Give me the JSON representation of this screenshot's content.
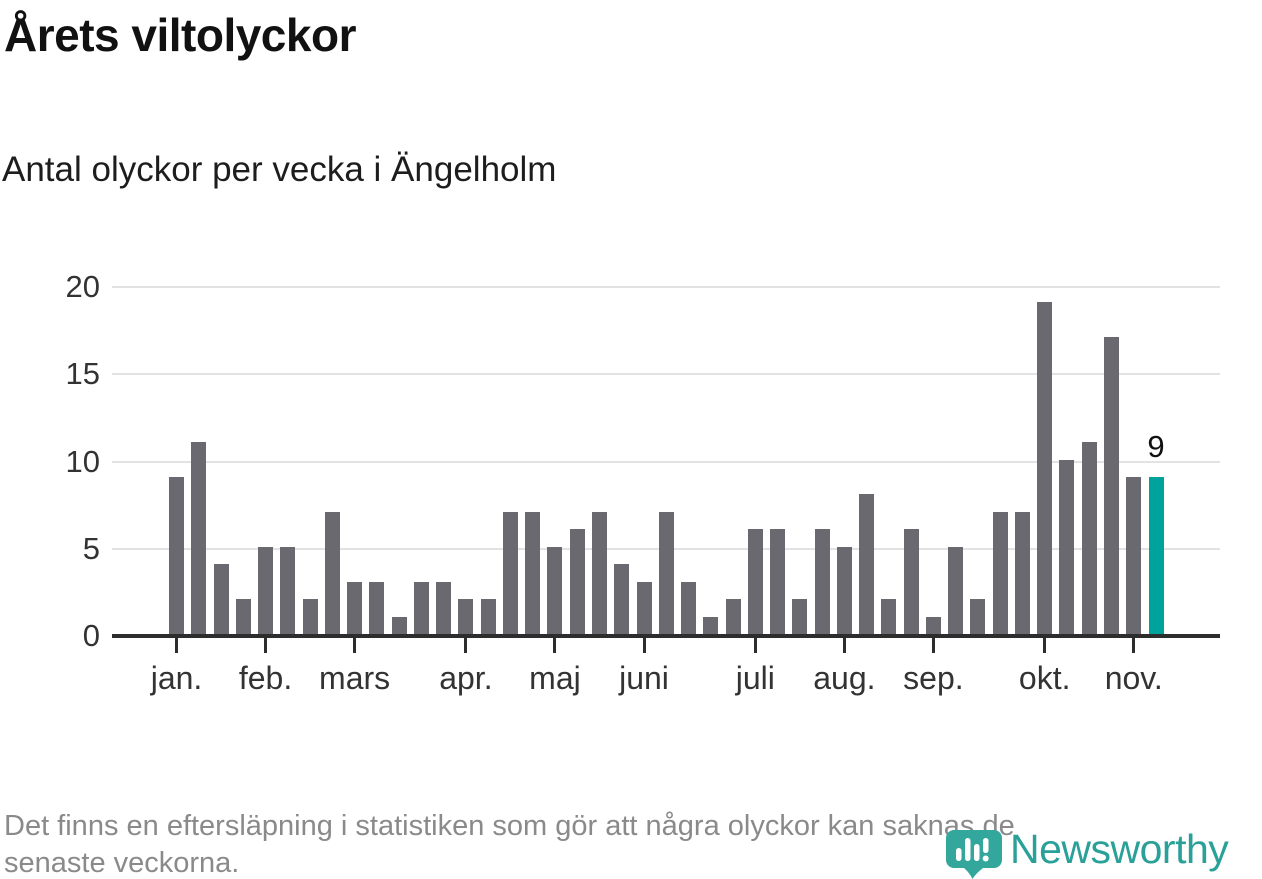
{
  "header": {
    "title": "Årets viltolyckor",
    "subtitle": "Antal olyckor per vecka i Ängelholm"
  },
  "chart_data": {
    "type": "bar",
    "title": "Årets viltolyckor",
    "subtitle": "Antal olyckor per vecka i Ängelholm",
    "x_unit": "vecka (week of year)",
    "values": [
      9,
      11,
      4,
      2,
      5,
      5,
      2,
      7,
      3,
      3,
      1,
      3,
      3,
      2,
      2,
      7,
      7,
      5,
      6,
      7,
      4,
      3,
      7,
      3,
      1,
      2,
      6,
      6,
      2,
      6,
      5,
      8,
      2,
      6,
      1,
      5,
      2,
      7,
      7,
      19,
      10,
      11,
      17,
      9,
      9
    ],
    "weeks": [
      1,
      2,
      3,
      4,
      5,
      6,
      7,
      8,
      9,
      10,
      11,
      12,
      13,
      14,
      15,
      16,
      17,
      18,
      19,
      20,
      21,
      22,
      23,
      24,
      25,
      26,
      27,
      28,
      29,
      30,
      31,
      32,
      33,
      34,
      35,
      36,
      37,
      38,
      39,
      40,
      41,
      42,
      43,
      44,
      45
    ],
    "highlight_last_bar": true,
    "last_value_label": "9",
    "ylim": [
      0,
      20
    ],
    "y_ticks": [
      0,
      5,
      10,
      15,
      20
    ],
    "grid": "horizontal",
    "month_ticks": [
      {
        "label": "jan.",
        "week": 1
      },
      {
        "label": "feb.",
        "week": 5
      },
      {
        "label": "mars",
        "week": 9
      },
      {
        "label": "apr.",
        "week": 14
      },
      {
        "label": "maj",
        "week": 18
      },
      {
        "label": "juni",
        "week": 22
      },
      {
        "label": "juli",
        "week": 27
      },
      {
        "label": "aug.",
        "week": 31
      },
      {
        "label": "sep.",
        "week": 35
      },
      {
        "label": "okt.",
        "week": 40
      },
      {
        "label": "nov.",
        "week": 44
      }
    ],
    "colors": {
      "bar": "#6a6970",
      "highlight": "#00a39c",
      "grid": "#e2e2e2",
      "axis": "#2d2d2d"
    }
  },
  "footer": {
    "note_line1": "Det finns en eftersläpning i statistiken som gör att några olyckor kan saknas de",
    "note_line2": "senaste veckorna."
  },
  "logo": {
    "text": "Newsworthy",
    "color": "#2aa198",
    "icon_color": "#33a79c"
  }
}
